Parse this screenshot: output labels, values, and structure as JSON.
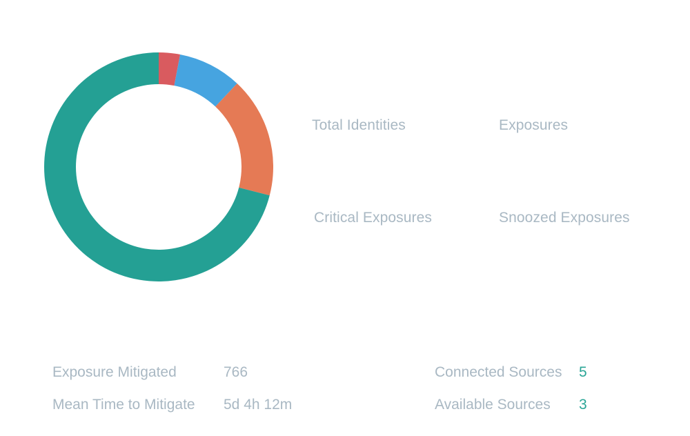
{
  "donut": {
    "segments": [
      {
        "value": 3,
        "color": "#d95b5f"
      },
      {
        "value": 9,
        "color": "#46a4e0"
      },
      {
        "value": 17,
        "color": "#e57a55"
      },
      {
        "value": 71,
        "color": "#24a094"
      }
    ]
  },
  "stats": {
    "total_identities": "Total Identities",
    "exposures": "Exposures",
    "critical_exposures": "Critical Exposures",
    "snoozed_exposures": "Snoozed Exposures"
  },
  "metrics": {
    "exposure_mitigated_label": "Exposure Mitigated",
    "exposure_mitigated_value": "766",
    "mean_time_label": "Mean Time to Mitigate",
    "mean_time_value": "5d 4h 12m"
  },
  "sources": {
    "connected_label": "Connected Sources",
    "connected_value": "5",
    "available_label": "Available Sources",
    "available_value": "3"
  }
}
